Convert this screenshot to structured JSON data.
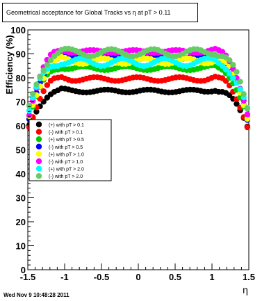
{
  "title": "Geometrical acceptance for Global Tracks vs    η at pT > 0.11",
  "footer": "Wed Nov  9 10:48:28 2011",
  "chart_data": {
    "type": "scatter",
    "title": "Geometrical acceptance for Global Tracks vs    η at pT > 0.11",
    "xlabel": "η",
    "ylabel": "Efficiency (%)",
    "xlim": [
      -1.5,
      1.5
    ],
    "ylim": [
      0,
      100
    ],
    "xticks": [
      "-1.5",
      "-1",
      "-0.5",
      "0",
      "0.5",
      "1",
      "1.5"
    ],
    "yticks": [
      "0",
      "10",
      "20",
      "30",
      "40",
      "50",
      "60",
      "70",
      "80",
      "90",
      "100"
    ],
    "grid": false,
    "legend_position": "left-middle",
    "series": [
      {
        "name": "(+) with pT > 0.1",
        "color": "#000000",
        "plateau": 74.5,
        "edge": 60,
        "wobble": 0.6
      },
      {
        "name": "(-) with pT > 0.1",
        "color": "#ff0000",
        "plateau": 79.5,
        "edge": 60,
        "wobble": 0.8
      },
      {
        "name": "(+) with pT > 0.5",
        "color": "#00cc00",
        "plateau": 84,
        "edge": 63,
        "wobble": 0.8
      },
      {
        "name": "(-) with pT > 0.5",
        "color": "#0000ff",
        "plateau": 88.5,
        "edge": 62,
        "wobble": 0.8
      },
      {
        "name": "(+) with pT > 1.0",
        "color": "#ffff00",
        "plateau": 87,
        "edge": 64,
        "wobble": 1.2
      },
      {
        "name": "(-) with pT > 1.0",
        "color": "#ff00ff",
        "plateau": 91,
        "edge": 65,
        "wobble": 0.6
      },
      {
        "name": "(+) with pT > 2.0",
        "color": "#00ffff",
        "plateau": 86.5,
        "edge": 66,
        "wobble": 1.6
      },
      {
        "name": "(-) with pT > 2.0",
        "color": "#66cc66",
        "plateau": 90.5,
        "edge": 67,
        "wobble": 1.5
      }
    ]
  }
}
